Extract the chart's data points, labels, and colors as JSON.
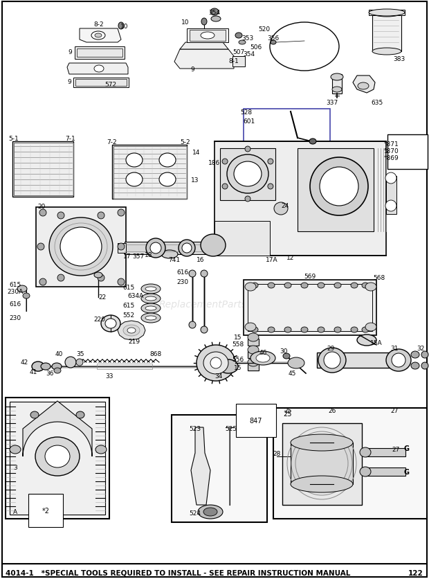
{
  "background_color": "#ffffff",
  "footer_text": "4014-1   *SPECIAL TOOLS REQUIRED TO INSTALL - SEE REPAIR INSTRUCTION MANUAL",
  "footer_page": "122",
  "watermark": "ReplacementParts.com",
  "fig_width": 6.2,
  "fig_height": 8.37,
  "dpi": 100
}
